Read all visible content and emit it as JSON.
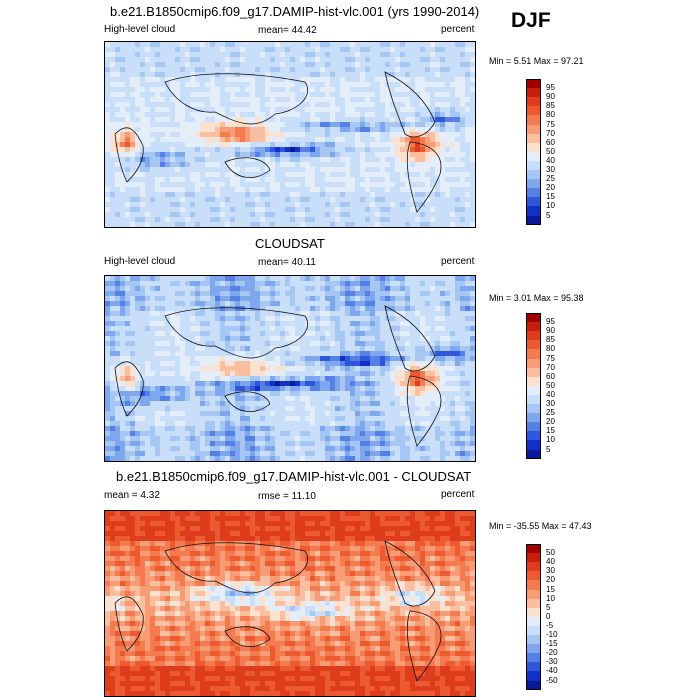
{
  "season": "DJF",
  "panels": [
    {
      "id": "model",
      "title": "b.e21.B1850cmip6.f09_g17.DAMIP-hist-vlc.001 (yrs 1990-2014)",
      "left_label": "High-level cloud",
      "center_label": "mean=  44.42",
      "right_label": "percent",
      "minmax": "Min =   5.51 Max =  97.21",
      "levels": [
        "95",
        "90",
        "85",
        "80",
        "75",
        "70",
        "60",
        "50",
        "40",
        "30",
        "25",
        "20",
        "15",
        "10",
        "5"
      ],
      "colors": [
        "#9e0000",
        "#c4200d",
        "#dd3d1c",
        "#ee5a30",
        "#f47b4f",
        "#f79c74",
        "#f9bfa0",
        "#fbe1cf",
        "#e4eefb",
        "#c9def9",
        "#a6c7f4",
        "#7ea7ee",
        "#5580e6",
        "#2f57dc",
        "#1230c8",
        "#0a1a96"
      ]
    },
    {
      "id": "obs",
      "title": "CLOUDSAT",
      "left_label": "High-level cloud",
      "center_label": "mean=  40.11",
      "right_label": "percent",
      "minmax": "Min =   3.01 Max =  95.38",
      "levels": [
        "95",
        "90",
        "85",
        "80",
        "75",
        "70",
        "60",
        "50",
        "40",
        "30",
        "25",
        "20",
        "15",
        "10",
        "5"
      ],
      "colors": [
        "#9e0000",
        "#c4200d",
        "#dd3d1c",
        "#ee5a30",
        "#f47b4f",
        "#f79c74",
        "#f9bfa0",
        "#fbe1cf",
        "#e4eefb",
        "#c9def9",
        "#a6c7f4",
        "#7ea7ee",
        "#5580e6",
        "#2f57dc",
        "#1230c8",
        "#0a1a96"
      ]
    },
    {
      "id": "diff",
      "title": "b.e21.B1850cmip6.f09_g17.DAMIP-hist-vlc.001 - CLOUDSAT",
      "left_label": "mean =   4.32",
      "center_label": "rmse =  11.10",
      "right_label": "percent",
      "minmax": "Min = -35.55 Max =  47.43",
      "levels": [
        "50",
        "40",
        "30",
        "20",
        "15",
        "10",
        "5",
        "0",
        "-5",
        "-10",
        "-15",
        "-20",
        "-30",
        "-40",
        "-50"
      ],
      "colors": [
        "#9e0000",
        "#c4200d",
        "#dd3d1c",
        "#ee5a30",
        "#f47b4f",
        "#f79c74",
        "#f9bfa0",
        "#fbe1cf",
        "#e4eefb",
        "#c9def9",
        "#a6c7f4",
        "#7ea7ee",
        "#5580e6",
        "#2f57dc",
        "#1230c8",
        "#0a1a96"
      ]
    }
  ]
}
